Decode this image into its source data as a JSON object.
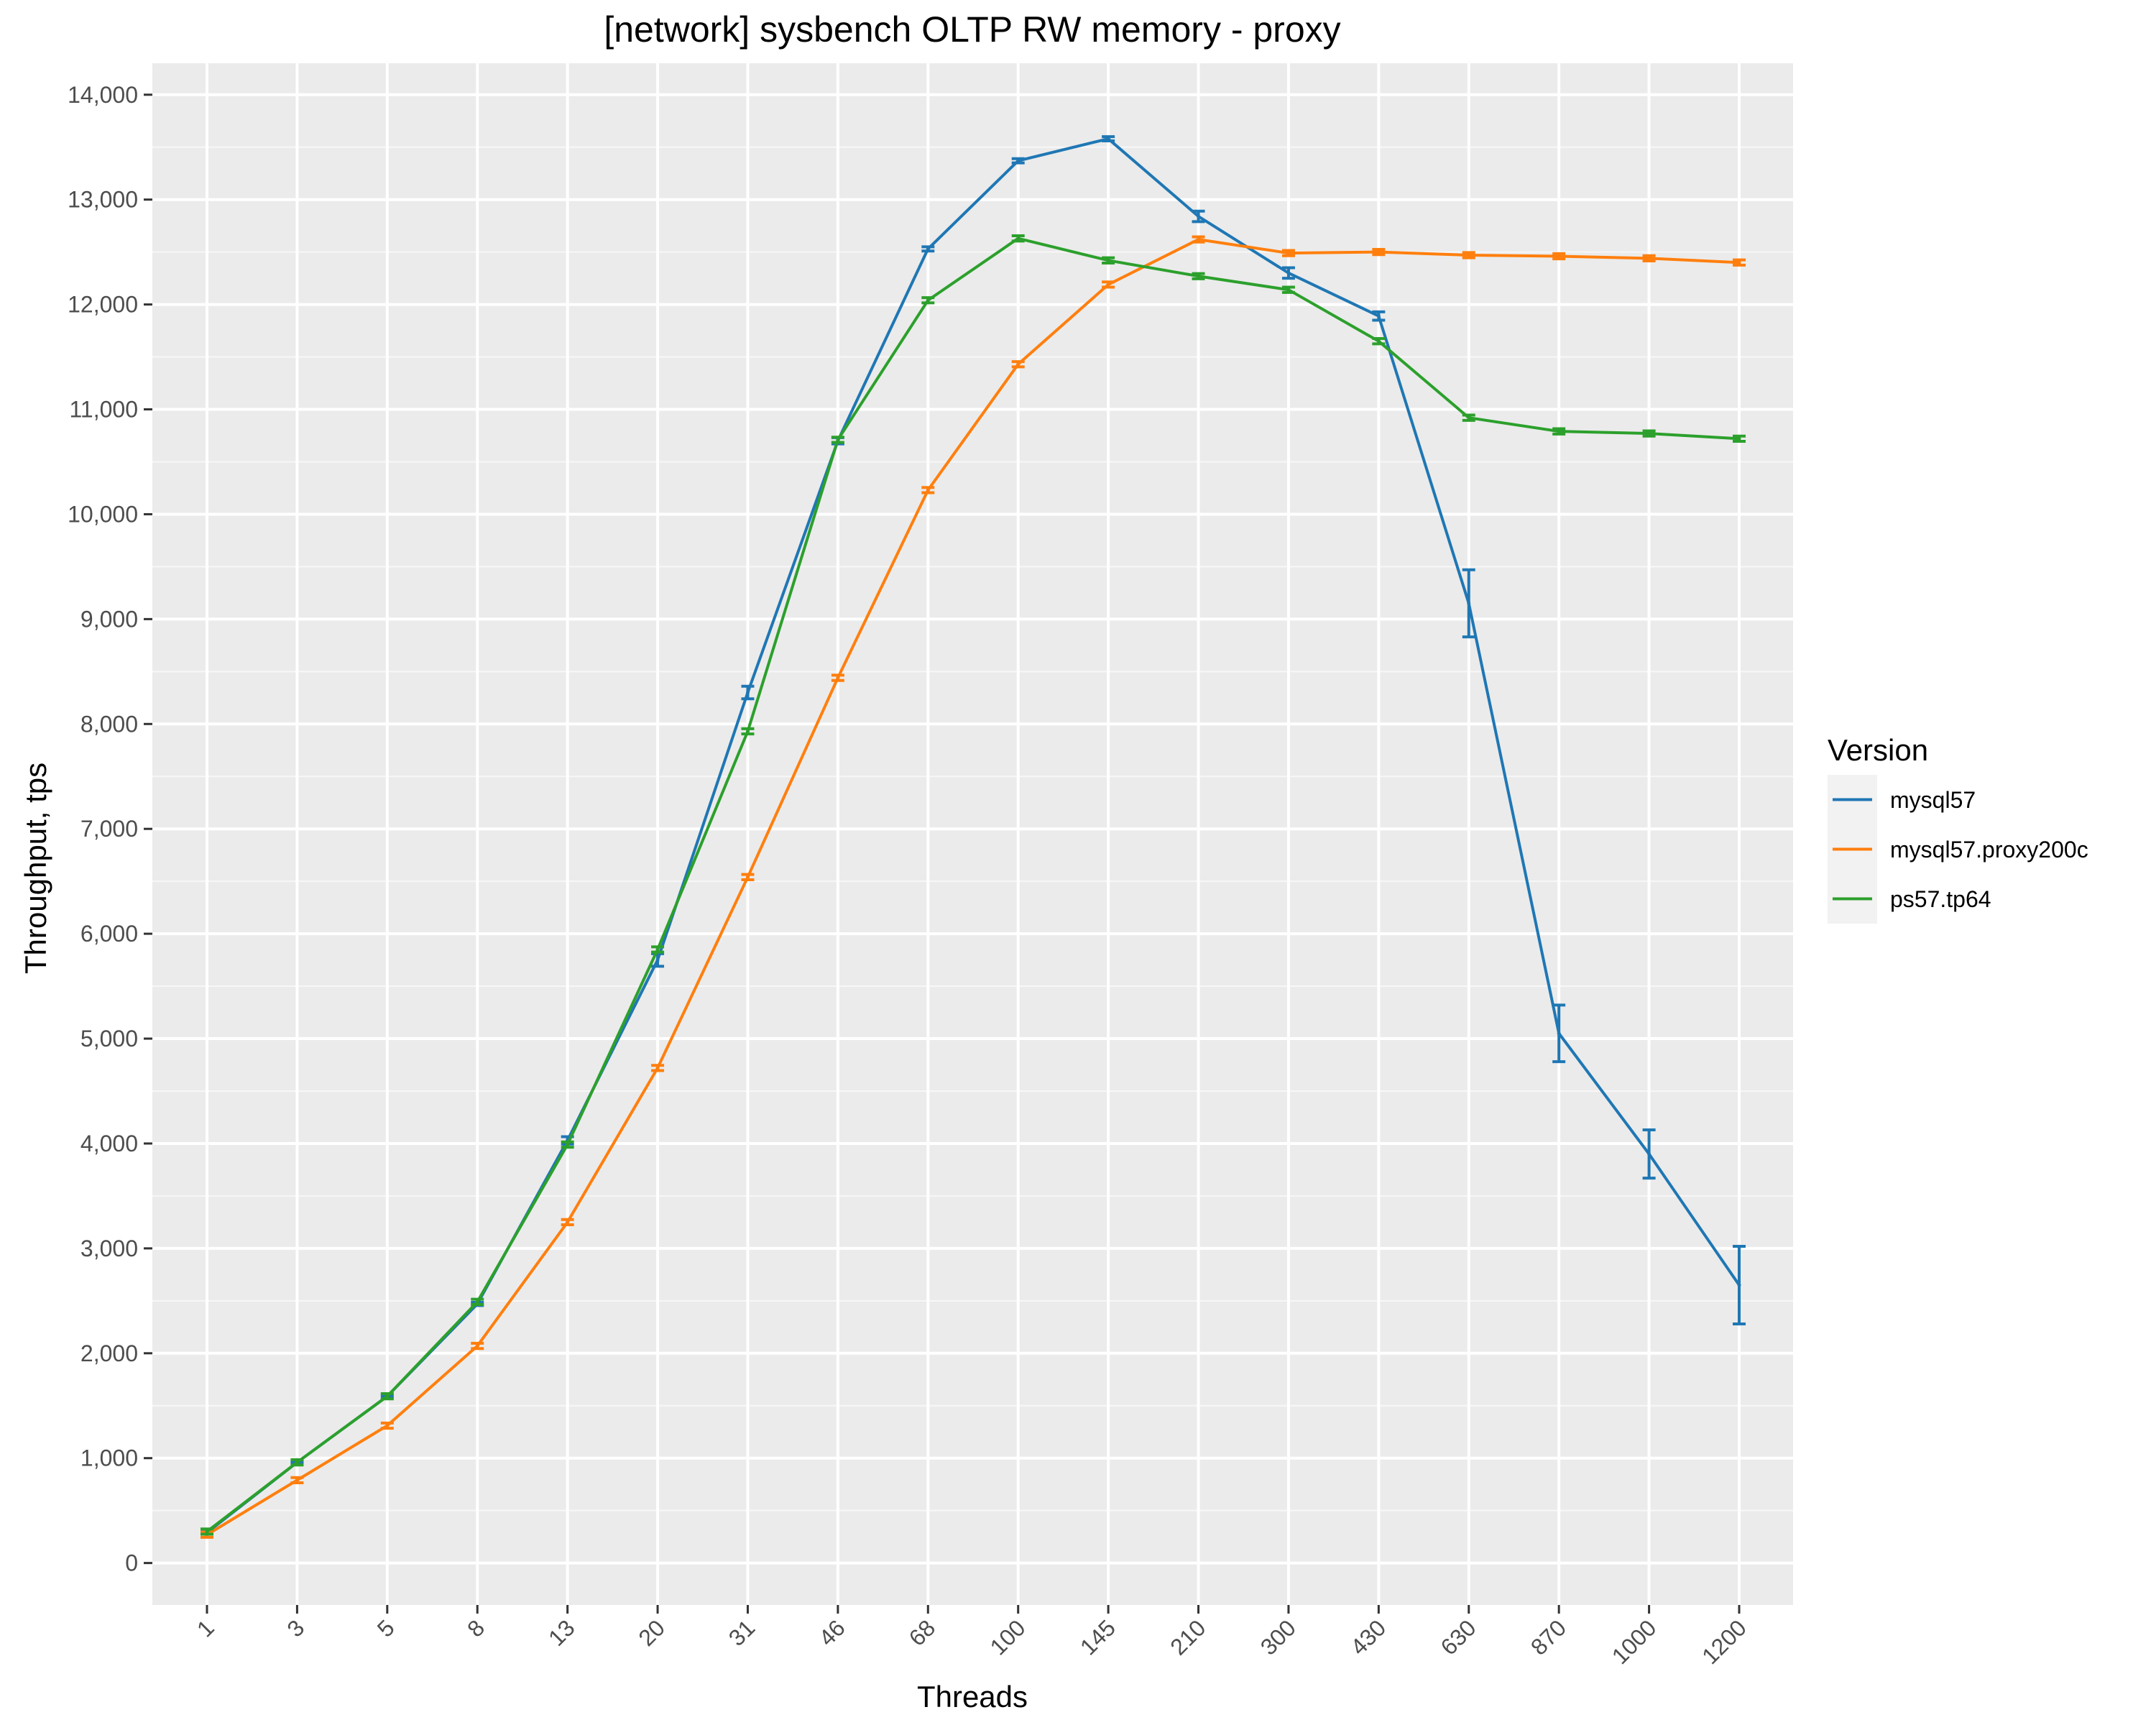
{
  "chart_data": {
    "type": "line",
    "title": "[network] sysbench OLTP RW memory - proxy",
    "xlabel": "Threads",
    "ylabel": "Throughput, tps",
    "categories": [
      "1",
      "3",
      "5",
      "8",
      "13",
      "20",
      "31",
      "46",
      "68",
      "100",
      "145",
      "210",
      "300",
      "430",
      "630",
      "870",
      "1000",
      "1200"
    ],
    "ylim": [
      -400,
      14300
    ],
    "yticks": [
      0,
      1000,
      2000,
      3000,
      4000,
      5000,
      6000,
      7000,
      8000,
      9000,
      10000,
      11000,
      12000,
      13000,
      14000
    ],
    "ytick_labels": [
      "0",
      "1,000",
      "2,000",
      "3,000",
      "4,000",
      "5,000",
      "6,000",
      "7,000",
      "8,000",
      "9,000",
      "10,000",
      "11,000",
      "12,000",
      "13,000",
      "14,000"
    ],
    "grid": true,
    "legend": {
      "title": "Version",
      "position": "right"
    },
    "series": [
      {
        "name": "mysql57",
        "color": "#1f77b4",
        "values": [
          290,
          960,
          1590,
          2470,
          4030,
          5750,
          8300,
          10700,
          12530,
          13370,
          13580,
          12840,
          12300,
          11890,
          9150,
          5050,
          3900,
          2650
        ],
        "error": [
          8,
          10,
          12,
          15,
          35,
          60,
          60,
          30,
          20,
          20,
          20,
          50,
          50,
          40,
          320,
          270,
          230,
          370
        ]
      },
      {
        "name": "mysql57.proxy200c",
        "color": "#ff7f0e",
        "values": [
          270,
          790,
          1310,
          2070,
          3250,
          4720,
          6540,
          8440,
          10230,
          11430,
          12190,
          12620,
          12490,
          12500,
          12470,
          12460,
          12440,
          12400
        ]
      },
      {
        "name": "ps57.tp64",
        "color": "#2ca02c",
        "values": [
          300,
          960,
          1590,
          2490,
          3990,
          5850,
          7930,
          10710,
          12040,
          12630,
          12420,
          12270,
          12140,
          11650,
          10920,
          10790,
          10770,
          10720
        ]
      }
    ]
  }
}
